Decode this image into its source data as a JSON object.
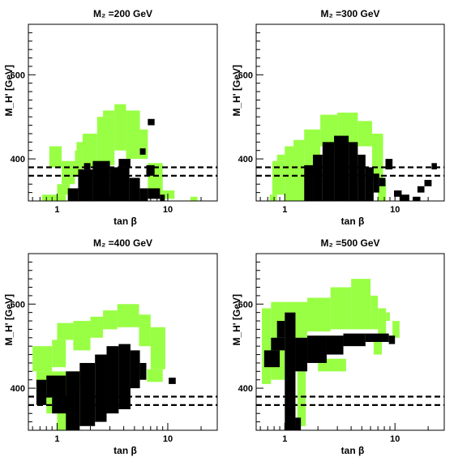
{
  "colors": {
    "allowed": "#99ff44",
    "excluded": "#000000",
    "frame": "#000000",
    "background": "#ffffff"
  },
  "chart_data": [
    {
      "type": "heatmap",
      "title": "M₂ =200 GeV",
      "xlabel": "tan β",
      "ylabel": "M_H' [GeV]",
      "x_scale": "log",
      "xlim": [
        0.55,
        28
      ],
      "ylim": [
        300,
        720
      ],
      "xticks": [
        {
          "value": 1,
          "label": "1"
        },
        {
          "value": 10,
          "label": "10"
        }
      ],
      "yticks": [
        {
          "value": 400,
          "label": "400"
        },
        {
          "value": 600,
          "label": "600"
        }
      ],
      "reference_lines": [
        360,
        380
      ],
      "rects": [
        {
          "kind": "allowed",
          "x0": 0.73,
          "x1": 1.2,
          "y0": 300,
          "y1": 315
        },
        {
          "kind": "allowed",
          "x0": 1.0,
          "x1": 1.3,
          "y0": 315,
          "y1": 340
        },
        {
          "kind": "allowed",
          "x0": 0.85,
          "x1": 1.1,
          "y0": 380,
          "y1": 430
        },
        {
          "kind": "allowed",
          "x0": 1.1,
          "x1": 1.45,
          "y0": 340,
          "y1": 395
        },
        {
          "kind": "allowed",
          "x0": 1.45,
          "x1": 1.7,
          "y0": 360,
          "y1": 420
        },
        {
          "kind": "allowed",
          "x0": 1.5,
          "x1": 1.85,
          "y0": 420,
          "y1": 440
        },
        {
          "kind": "allowed",
          "x0": 1.7,
          "x1": 2.3,
          "y0": 380,
          "y1": 460
        },
        {
          "kind": "allowed",
          "x0": 2.3,
          "x1": 3.3,
          "y0": 385,
          "y1": 500
        },
        {
          "kind": "allowed",
          "x0": 2.6,
          "x1": 3.3,
          "y0": 500,
          "y1": 515
        },
        {
          "kind": "allowed",
          "x0": 3.3,
          "x1": 4.2,
          "y0": 420,
          "y1": 530
        },
        {
          "kind": "allowed",
          "x0": 4.2,
          "x1": 5.6,
          "y0": 400,
          "y1": 515
        },
        {
          "kind": "allowed",
          "x0": 5.6,
          "x1": 6.6,
          "y0": 400,
          "y1": 470
        },
        {
          "kind": "allowed",
          "x0": 6.6,
          "x1": 9.0,
          "y0": 310,
          "y1": 390
        },
        {
          "kind": "allowed",
          "x0": 9.0,
          "x1": 11.5,
          "y0": 305,
          "y1": 325
        },
        {
          "kind": "allowed",
          "x0": 16.0,
          "x1": 18.5,
          "y0": 300,
          "y1": 310
        },
        {
          "kind": "excluded",
          "x0": 1.25,
          "x1": 1.55,
          "y0": 300,
          "y1": 330
        },
        {
          "kind": "excluded",
          "x0": 1.55,
          "x1": 2.1,
          "y0": 300,
          "y1": 375
        },
        {
          "kind": "excluded",
          "x0": 1.75,
          "x1": 2.0,
          "y0": 375,
          "y1": 390
        },
        {
          "kind": "excluded",
          "x0": 2.1,
          "x1": 3.0,
          "y0": 300,
          "y1": 395
        },
        {
          "kind": "excluded",
          "x0": 3.0,
          "x1": 4.5,
          "y0": 300,
          "y1": 380
        },
        {
          "kind": "excluded",
          "x0": 3.6,
          "x1": 4.6,
          "y0": 380,
          "y1": 400
        },
        {
          "kind": "excluded",
          "x0": 4.5,
          "x1": 5.6,
          "y0": 300,
          "y1": 355
        },
        {
          "kind": "excluded",
          "x0": 5.6,
          "x1": 6.6,
          "y0": 300,
          "y1": 330
        },
        {
          "kind": "excluded",
          "x0": 6.6,
          "x1": 8.5,
          "y0": 305,
          "y1": 330
        },
        {
          "kind": "excluded",
          "x0": 8.5,
          "x1": 9.4,
          "y0": 300,
          "y1": 315
        },
        {
          "kind": "excluded",
          "x0": 6.4,
          "x1": 7.6,
          "y0": 360,
          "y1": 385
        },
        {
          "kind": "excluded",
          "x0": 5.6,
          "x1": 6.3,
          "y0": 410,
          "y1": 425
        },
        {
          "kind": "excluded",
          "x0": 6.6,
          "x1": 7.6,
          "y0": 480,
          "y1": 495
        }
      ]
    },
    {
      "type": "heatmap",
      "title": "M₂ =300 GeV",
      "xlabel": "tan β",
      "ylabel": "M_H' [GeV]",
      "x_scale": "log",
      "xlim": [
        0.55,
        28
      ],
      "ylim": [
        300,
        720
      ],
      "xticks": [
        {
          "value": 1,
          "label": "1"
        },
        {
          "value": 10,
          "label": "10"
        }
      ],
      "yticks": [
        {
          "value": 400,
          "label": "400"
        },
        {
          "value": 600,
          "label": "600"
        }
      ],
      "reference_lines": [
        360,
        380
      ],
      "rects": [
        {
          "kind": "allowed",
          "x0": 0.73,
          "x1": 0.85,
          "y0": 300,
          "y1": 315
        },
        {
          "kind": "allowed",
          "x0": 0.77,
          "x1": 1.0,
          "y0": 315,
          "y1": 395
        },
        {
          "kind": "allowed",
          "x0": 0.85,
          "x1": 1.0,
          "y0": 395,
          "y1": 410
        },
        {
          "kind": "allowed",
          "x0": 1.0,
          "x1": 1.5,
          "y0": 300,
          "y1": 430
        },
        {
          "kind": "allowed",
          "x0": 1.2,
          "x1": 1.6,
          "y0": 430,
          "y1": 445
        },
        {
          "kind": "allowed",
          "x0": 1.5,
          "x1": 2.1,
          "y0": 380,
          "y1": 470
        },
        {
          "kind": "allowed",
          "x0": 2.1,
          "x1": 3.0,
          "y0": 430,
          "y1": 505
        },
        {
          "kind": "allowed",
          "x0": 3.0,
          "x1": 4.6,
          "y0": 440,
          "y1": 510
        },
        {
          "kind": "allowed",
          "x0": 4.6,
          "x1": 6.2,
          "y0": 430,
          "y1": 490
        },
        {
          "kind": "allowed",
          "x0": 6.2,
          "x1": 7.8,
          "y0": 350,
          "y1": 460
        },
        {
          "kind": "allowed",
          "x0": 7.0,
          "x1": 8.3,
          "y0": 300,
          "y1": 350
        },
        {
          "kind": "excluded",
          "x0": 1.5,
          "x1": 1.8,
          "y0": 300,
          "y1": 385
        },
        {
          "kind": "excluded",
          "x0": 1.8,
          "x1": 2.2,
          "y0": 300,
          "y1": 410
        },
        {
          "kind": "excluded",
          "x0": 2.2,
          "x1": 2.8,
          "y0": 300,
          "y1": 440
        },
        {
          "kind": "excluded",
          "x0": 2.8,
          "x1": 3.8,
          "y0": 300,
          "y1": 455
        },
        {
          "kind": "excluded",
          "x0": 3.8,
          "x1": 4.6,
          "y0": 300,
          "y1": 440
        },
        {
          "kind": "excluded",
          "x0": 4.6,
          "x1": 5.4,
          "y0": 300,
          "y1": 410
        },
        {
          "kind": "excluded",
          "x0": 5.4,
          "x1": 6.4,
          "y0": 300,
          "y1": 380
        },
        {
          "kind": "excluded",
          "x0": 6.4,
          "x1": 7.2,
          "y0": 320,
          "y1": 365
        },
        {
          "kind": "excluded",
          "x0": 8.2,
          "x1": 9.5,
          "y0": 375,
          "y1": 400
        },
        {
          "kind": "excluded",
          "x0": 7.2,
          "x1": 8.2,
          "y0": 335,
          "y1": 355
        },
        {
          "kind": "excluded",
          "x0": 9.8,
          "x1": 11.5,
          "y0": 310,
          "y1": 325
        },
        {
          "kind": "excluded",
          "x0": 11.0,
          "x1": 13.5,
          "y0": 300,
          "y1": 315
        },
        {
          "kind": "excluded",
          "x0": 14.5,
          "x1": 17.0,
          "y0": 300,
          "y1": 310
        },
        {
          "kind": "excluded",
          "x0": 16.0,
          "x1": 18.5,
          "y0": 320,
          "y1": 335
        },
        {
          "kind": "excluded",
          "x0": 18.5,
          "x1": 21.5,
          "y0": 335,
          "y1": 350
        },
        {
          "kind": "excluded",
          "x0": 21.5,
          "x1": 24.0,
          "y0": 375,
          "y1": 390
        }
      ]
    },
    {
      "type": "heatmap",
      "title": "M₂ =400 GeV",
      "xlabel": "tan β",
      "ylabel": "M_H' [GeV]",
      "x_scale": "log",
      "xlim": [
        0.55,
        28
      ],
      "ylim": [
        300,
        720
      ],
      "xticks": [
        {
          "value": 1,
          "label": "1"
        },
        {
          "value": 10,
          "label": "10"
        }
      ],
      "yticks": [
        {
          "value": 400,
          "label": "400"
        },
        {
          "value": 600,
          "label": "600"
        }
      ],
      "reference_lines": [
        360,
        380
      ],
      "rects": [
        {
          "kind": "allowed",
          "x0": 0.6,
          "x1": 0.9,
          "y0": 440,
          "y1": 500
        },
        {
          "kind": "allowed",
          "x0": 0.9,
          "x1": 1.2,
          "y0": 450,
          "y1": 515
        },
        {
          "kind": "allowed",
          "x0": 1.0,
          "x1": 1.4,
          "y0": 515,
          "y1": 555
        },
        {
          "kind": "allowed",
          "x0": 1.4,
          "x1": 2.0,
          "y0": 490,
          "y1": 560
        },
        {
          "kind": "allowed",
          "x0": 2.0,
          "x1": 2.6,
          "y0": 520,
          "y1": 570
        },
        {
          "kind": "allowed",
          "x0": 2.6,
          "x1": 3.5,
          "y0": 540,
          "y1": 585
        },
        {
          "kind": "allowed",
          "x0": 3.5,
          "x1": 5.5,
          "y0": 545,
          "y1": 600
        },
        {
          "kind": "allowed",
          "x0": 5.5,
          "x1": 7.0,
          "y0": 500,
          "y1": 575
        },
        {
          "kind": "allowed",
          "x0": 7.0,
          "x1": 9.5,
          "y0": 445,
          "y1": 545
        },
        {
          "kind": "allowed",
          "x0": 6.5,
          "x1": 9.0,
          "y0": 415,
          "y1": 445
        },
        {
          "kind": "allowed",
          "x0": 0.65,
          "x1": 1.8,
          "y0": 400,
          "y1": 440
        },
        {
          "kind": "allowed",
          "x0": 0.8,
          "x1": 1.3,
          "y0": 340,
          "y1": 400
        },
        {
          "kind": "allowed",
          "x0": 1.0,
          "x1": 1.4,
          "y0": 300,
          "y1": 340
        },
        {
          "kind": "excluded",
          "x0": 0.65,
          "x1": 0.8,
          "y0": 360,
          "y1": 420
        },
        {
          "kind": "excluded",
          "x0": 0.8,
          "x1": 1.2,
          "y0": 380,
          "y1": 430
        },
        {
          "kind": "excluded",
          "x0": 0.9,
          "x1": 1.3,
          "y0": 340,
          "y1": 380
        },
        {
          "kind": "excluded",
          "x0": 1.2,
          "x1": 1.6,
          "y0": 300,
          "y1": 440
        },
        {
          "kind": "excluded",
          "x0": 1.6,
          "x1": 2.2,
          "y0": 310,
          "y1": 460
        },
        {
          "kind": "excluded",
          "x0": 2.2,
          "x1": 2.8,
          "y0": 320,
          "y1": 480
        },
        {
          "kind": "excluded",
          "x0": 2.8,
          "x1": 3.6,
          "y0": 340,
          "y1": 500
        },
        {
          "kind": "excluded",
          "x0": 3.6,
          "x1": 4.6,
          "y0": 350,
          "y1": 505
        },
        {
          "kind": "excluded",
          "x0": 4.6,
          "x1": 5.6,
          "y0": 400,
          "y1": 490
        },
        {
          "kind": "excluded",
          "x0": 5.6,
          "x1": 6.4,
          "y0": 420,
          "y1": 460
        },
        {
          "kind": "excluded",
          "x0": 10.2,
          "x1": 11.8,
          "y0": 410,
          "y1": 425
        }
      ]
    },
    {
      "type": "heatmap",
      "title": "M₂ =500 GeV",
      "xlabel": "tan β",
      "ylabel": "M_H' [GeV]",
      "x_scale": "log",
      "xlim": [
        0.55,
        28
      ],
      "ylim": [
        300,
        720
      ],
      "xticks": [
        {
          "value": 1,
          "label": "1"
        },
        {
          "value": 10,
          "label": "10"
        }
      ],
      "yticks": [
        {
          "value": 400,
          "label": "400"
        },
        {
          "value": 600,
          "label": "600"
        }
      ],
      "reference_lines": [
        360,
        380
      ],
      "rects": [
        {
          "kind": "allowed",
          "x0": 0.62,
          "x1": 0.75,
          "y0": 410,
          "y1": 590
        },
        {
          "kind": "allowed",
          "x0": 0.75,
          "x1": 1.0,
          "y0": 420,
          "y1": 605
        },
        {
          "kind": "allowed",
          "x0": 1.0,
          "x1": 1.6,
          "y0": 520,
          "y1": 605
        },
        {
          "kind": "allowed",
          "x0": 1.6,
          "x1": 2.6,
          "y0": 535,
          "y1": 615
        },
        {
          "kind": "allowed",
          "x0": 2.6,
          "x1": 4.0,
          "y0": 540,
          "y1": 640
        },
        {
          "kind": "allowed",
          "x0": 4.0,
          "x1": 6.0,
          "y0": 540,
          "y1": 660
        },
        {
          "kind": "allowed",
          "x0": 6.0,
          "x1": 7.0,
          "y0": 540,
          "y1": 620
        },
        {
          "kind": "allowed",
          "x0": 7.0,
          "x1": 8.3,
          "y0": 520,
          "y1": 590
        },
        {
          "kind": "allowed",
          "x0": 8.3,
          "x1": 9.0,
          "y0": 560,
          "y1": 580
        },
        {
          "kind": "allowed",
          "x0": 9.5,
          "x1": 11.0,
          "y0": 520,
          "y1": 560
        },
        {
          "kind": "allowed",
          "x0": 6.4,
          "x1": 7.6,
          "y0": 480,
          "y1": 520
        },
        {
          "kind": "allowed",
          "x0": 2.0,
          "x1": 3.6,
          "y0": 440,
          "y1": 470
        },
        {
          "kind": "allowed",
          "x0": 1.3,
          "x1": 1.55,
          "y0": 310,
          "y1": 440
        },
        {
          "kind": "excluded",
          "x0": 0.65,
          "x1": 0.9,
          "y0": 450,
          "y1": 490
        },
        {
          "kind": "excluded",
          "x0": 0.75,
          "x1": 1.0,
          "y0": 490,
          "y1": 520
        },
        {
          "kind": "excluded",
          "x0": 0.85,
          "x1": 1.0,
          "y0": 520,
          "y1": 560
        },
        {
          "kind": "excluded",
          "x0": 1.0,
          "x1": 1.25,
          "y0": 300,
          "y1": 580
        },
        {
          "kind": "excluded",
          "x0": 1.25,
          "x1": 1.4,
          "y0": 300,
          "y1": 330
        },
        {
          "kind": "excluded",
          "x0": 1.25,
          "x1": 1.6,
          "y0": 440,
          "y1": 520
        },
        {
          "kind": "excluded",
          "x0": 1.6,
          "x1": 2.4,
          "y0": 460,
          "y1": 525
        },
        {
          "kind": "excluded",
          "x0": 2.4,
          "x1": 3.4,
          "y0": 480,
          "y1": 525
        },
        {
          "kind": "excluded",
          "x0": 3.4,
          "x1": 5.4,
          "y0": 500,
          "y1": 530
        },
        {
          "kind": "excluded",
          "x0": 5.4,
          "x1": 8.8,
          "y0": 510,
          "y1": 530
        },
        {
          "kind": "excluded",
          "x0": 8.8,
          "x1": 10.0,
          "y0": 505,
          "y1": 525
        }
      ]
    }
  ]
}
